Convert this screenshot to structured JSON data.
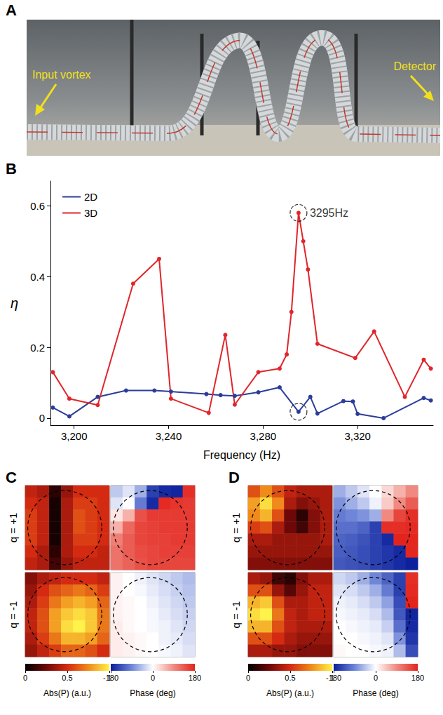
{
  "chart_data": [
    {
      "type": "photo",
      "panel": "A",
      "labels": [
        "Input vortex",
        "Detector"
      ]
    },
    {
      "type": "line",
      "panel": "B",
      "xlabel": "Frequency (Hz)",
      "ylabel": "η",
      "xlim": [
        3190,
        3352
      ],
      "xticks": [
        3200,
        3240,
        3280,
        3320
      ],
      "ylim": [
        -0.02,
        0.67
      ],
      "yticks": [
        0,
        0.2,
        0.4,
        0.6
      ],
      "legend": "upper left",
      "grid": false,
      "marker": "circle",
      "series": [
        {
          "name": "2D",
          "color": "#2b3d9b",
          "x": [
            3191,
            3198,
            3210,
            3222,
            3234,
            3241,
            3256,
            3262,
            3268,
            3278,
            3287,
            3295,
            3300,
            3303,
            3314,
            3318,
            3320,
            3331,
            3348,
            3351
          ],
          "values": [
            0.03,
            0.005,
            0.06,
            0.078,
            0.078,
            0.075,
            0.068,
            0.065,
            0.063,
            0.073,
            0.087,
            0.018,
            0.06,
            0.013,
            0.048,
            0.047,
            0.012,
            0.0,
            0.057,
            0.05
          ]
        },
        {
          "name": "3D",
          "color": "#e0262b",
          "x": [
            3191,
            3198,
            3210,
            3225,
            3236,
            3241,
            3257,
            3264,
            3268,
            3278,
            3287,
            3290,
            3292,
            3295,
            3297,
            3299,
            3303,
            3319,
            3327,
            3340,
            3348,
            3351
          ],
          "values": [
            0.13,
            0.055,
            0.037,
            0.38,
            0.45,
            0.055,
            0.015,
            0.235,
            0.038,
            0.13,
            0.14,
            0.18,
            0.3,
            0.58,
            0.5,
            0.42,
            0.21,
            0.17,
            0.245,
            0.06,
            0.165,
            0.14
          ]
        }
      ],
      "annotations": [
        {
          "text": "3295Hz",
          "x": 3295,
          "y": 0.58
        }
      ],
      "circled_points": [
        {
          "x": 3295,
          "y": 0.58
        },
        {
          "x": 3295,
          "y": 0.018
        }
      ]
    },
    {
      "type": "heatmap",
      "panel": "C",
      "rows": [
        {
          "label": "q = +1",
          "abs": [
            [
              0.45,
              0.4,
              0.1,
              0.35,
              0.5,
              0.5,
              0.5
            ],
            [
              0.5,
              0.45,
              0.05,
              0.4,
              0.55,
              0.55,
              0.5
            ],
            [
              0.55,
              0.45,
              0.05,
              0.4,
              0.6,
              0.55,
              0.5
            ],
            [
              0.55,
              0.45,
              0.05,
              0.4,
              0.6,
              0.55,
              0.5
            ],
            [
              0.55,
              0.45,
              0.05,
              0.4,
              0.55,
              0.55,
              0.5
            ],
            [
              0.5,
              0.4,
              0.1,
              0.4,
              0.5,
              0.5,
              0.45
            ],
            [
              0.45,
              0.4,
              0.15,
              0.35,
              0.45,
              0.45,
              0.45
            ]
          ],
          "phase": [
            [
              -40,
              -20,
              -60,
              -150,
              -170,
              -175,
              170
            ],
            [
              -20,
              0,
              -100,
              -170,
              175,
              165,
              160
            ],
            [
              20,
              60,
              140,
              160,
              160,
              160,
              160
            ],
            [
              60,
              120,
              150,
              155,
              160,
              160,
              160
            ],
            [
              100,
              130,
              150,
              155,
              155,
              160,
              160
            ],
            [
              110,
              130,
              145,
              150,
              155,
              155,
              155
            ],
            [
              110,
              125,
              140,
              150,
              150,
              150,
              150
            ]
          ]
        },
        {
          "label": "q = -1",
          "abs": [
            [
              0.3,
              0.4,
              0.45,
              0.5,
              0.5,
              0.5,
              0.45
            ],
            [
              0.35,
              0.5,
              0.6,
              0.65,
              0.7,
              0.65,
              0.55
            ],
            [
              0.4,
              0.55,
              0.7,
              0.8,
              0.85,
              0.8,
              0.65
            ],
            [
              0.45,
              0.6,
              0.8,
              0.9,
              0.95,
              0.9,
              0.7
            ],
            [
              0.45,
              0.6,
              0.8,
              0.95,
              1.0,
              0.9,
              0.7
            ],
            [
              0.4,
              0.55,
              0.7,
              0.85,
              0.85,
              0.8,
              0.65
            ],
            [
              0.35,
              0.45,
              0.55,
              0.65,
              0.65,
              0.6,
              0.5
            ]
          ],
          "phase": [
            [
              10,
              0,
              -10,
              -20,
              -30,
              -40,
              -50
            ],
            [
              10,
              0,
              -5,
              -15,
              -25,
              -35,
              -45
            ],
            [
              10,
              5,
              0,
              -10,
              -20,
              -30,
              -40
            ],
            [
              10,
              5,
              0,
              -5,
              -15,
              -25,
              -35
            ],
            [
              15,
              5,
              0,
              -5,
              -10,
              -20,
              -30
            ],
            [
              15,
              10,
              5,
              0,
              -10,
              -15,
              -25
            ],
            [
              15,
              10,
              5,
              0,
              -5,
              -10,
              -20
            ]
          ]
        }
      ],
      "abs_colorbar": {
        "range": [
          0,
          1
        ],
        "ticks": [
          0,
          0.5,
          1
        ],
        "label": "Abs(P) (a.u.)"
      },
      "phase_colorbar": {
        "range": [
          -180,
          180
        ],
        "ticks": [
          -180,
          0,
          180
        ],
        "label": "Phase (deg)"
      }
    },
    {
      "type": "heatmap",
      "panel": "D",
      "rows": [
        {
          "label": "q = +1",
          "abs": [
            [
              0.6,
              0.75,
              0.6,
              0.45,
              0.4,
              0.4,
              0.4
            ],
            [
              0.8,
              0.95,
              0.75,
              0.4,
              0.3,
              0.35,
              0.4
            ],
            [
              0.75,
              0.85,
              0.6,
              0.25,
              0.1,
              0.3,
              0.4
            ],
            [
              0.55,
              0.6,
              0.4,
              0.25,
              0.15,
              0.3,
              0.4
            ],
            [
              0.4,
              0.4,
              0.35,
              0.35,
              0.35,
              0.35,
              0.4
            ],
            [
              0.35,
              0.35,
              0.35,
              0.35,
              0.35,
              0.35,
              0.35
            ],
            [
              0.3,
              0.3,
              0.3,
              0.3,
              0.3,
              0.3,
              0.3
            ]
          ],
          "phase": [
            [
              -60,
              -40,
              -20,
              0,
              30,
              60,
              90
            ],
            [
              -80,
              -60,
              -40,
              -10,
              40,
              90,
              130
            ],
            [
              -100,
              -90,
              -80,
              -60,
              90,
              150,
              170
            ],
            [
              -110,
              -110,
              -120,
              -150,
              170,
              170,
              175
            ],
            [
              -120,
              -125,
              -135,
              -150,
              -170,
              180,
              178
            ],
            [
              -125,
              -130,
              -140,
              -150,
              -160,
              -170,
              178
            ],
            [
              -130,
              -135,
              -140,
              -150,
              -160,
              -170,
              -178
            ]
          ]
        },
        {
          "label": "q = -1",
          "abs": [
            [
              0.4,
              0.35,
              0.15,
              0.1,
              0.3,
              0.4,
              0.4
            ],
            [
              0.6,
              0.6,
              0.35,
              0.2,
              0.35,
              0.45,
              0.45
            ],
            [
              0.85,
              0.9,
              0.6,
              0.4,
              0.4,
              0.45,
              0.45
            ],
            [
              0.95,
              1.0,
              0.7,
              0.45,
              0.4,
              0.45,
              0.45
            ],
            [
              0.85,
              0.85,
              0.6,
              0.45,
              0.4,
              0.4,
              0.4
            ],
            [
              0.6,
              0.6,
              0.5,
              0.4,
              0.35,
              0.35,
              0.35
            ],
            [
              0.4,
              0.4,
              0.35,
              0.35,
              0.3,
              0.3,
              0.3
            ]
          ],
          "phase": [
            [
              -30,
              -40,
              -60,
              -90,
              -120,
              -150,
              170
            ],
            [
              -20,
              -25,
              -40,
              -60,
              -100,
              -150,
              175
            ],
            [
              -10,
              -15,
              -25,
              -40,
              -70,
              -140,
              180
            ],
            [
              -5,
              -10,
              -15,
              -25,
              -50,
              -130,
              -175
            ],
            [
              0,
              -5,
              -10,
              -15,
              -35,
              -110,
              -170
            ],
            [
              0,
              0,
              -5,
              -10,
              -20,
              -80,
              -160
            ],
            [
              5,
              0,
              0,
              -5,
              -10,
              -50,
              -140
            ]
          ]
        }
      ],
      "abs_colorbar": {
        "range": [
          0,
          1
        ],
        "ticks": [
          0,
          0.5,
          1
        ],
        "label": "Abs(P) (a.u.)"
      },
      "phase_colorbar": {
        "range": [
          -180,
          180
        ],
        "ticks": [
          -180,
          0,
          180
        ],
        "label": "Phase (deg)"
      }
    }
  ]
}
